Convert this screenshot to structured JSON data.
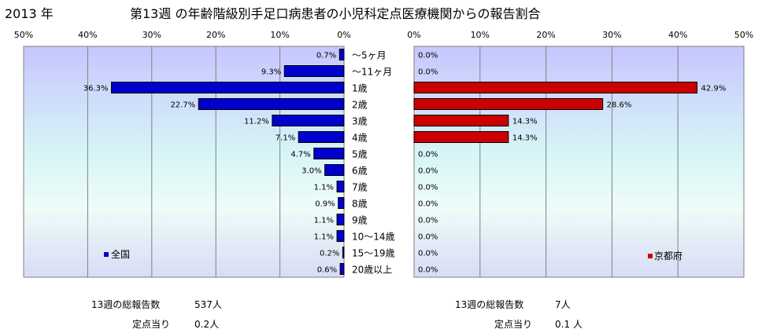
{
  "header": {
    "year": "2013 年",
    "title": "第13週 の年齢階級別手足口病患者の小児科定点医療機関からの報告割合"
  },
  "chart_data": {
    "type": "bar",
    "orientation": "horizontal",
    "categories": [
      "～5ヶ月",
      "～11ヶ月",
      "1歳",
      "2歳",
      "3歳",
      "4歳",
      "5歳",
      "6歳",
      "7歳",
      "8歳",
      "9歳",
      "10～14歳",
      "15～19歳",
      "20歳以上"
    ],
    "axis_ticks": [
      "50%",
      "40%",
      "30%",
      "20%",
      "10%",
      "0%"
    ],
    "axis_ticks_right": [
      "0%",
      "10%",
      "20%",
      "30%",
      "40%",
      "50%"
    ],
    "xlim": [
      0,
      50
    ],
    "grid": true,
    "series": [
      {
        "name": "全国",
        "color": "#0000cc",
        "values": [
          0.7,
          9.3,
          36.3,
          22.7,
          11.2,
          7.1,
          4.7,
          3.0,
          1.1,
          0.9,
          1.1,
          1.1,
          0.2,
          0.6
        ],
        "labels": [
          "0.7%",
          "9.3%",
          "36.3%",
          "22.7%",
          "11.2%",
          "7.1%",
          "4.7%",
          "3.0%",
          "1.1%",
          "0.9%",
          "1.1%",
          "1.1%",
          "0.2%",
          "0.6%"
        ]
      },
      {
        "name": "京都府",
        "color": "#cc0000",
        "values": [
          0.0,
          0.0,
          42.9,
          28.6,
          14.3,
          14.3,
          0.0,
          0.0,
          0.0,
          0.0,
          0.0,
          0.0,
          0.0,
          0.0
        ],
        "labels": [
          "0.0%",
          "0.0%",
          "42.9%",
          "28.6%",
          "14.3%",
          "14.3%",
          "0.0%",
          "0.0%",
          "0.0%",
          "0.0%",
          "0.0%",
          "0.0%",
          "0.0%",
          "0.0%"
        ]
      }
    ]
  },
  "footer": {
    "left": {
      "total_label": "13週の総報告数",
      "total_value": "537人",
      "per_label": "定点当り",
      "per_value": "0.2人"
    },
    "right": {
      "total_label": "13週の総報告数",
      "total_value": "7人",
      "per_label": "定点当り",
      "per_value": "0.1 人"
    }
  }
}
